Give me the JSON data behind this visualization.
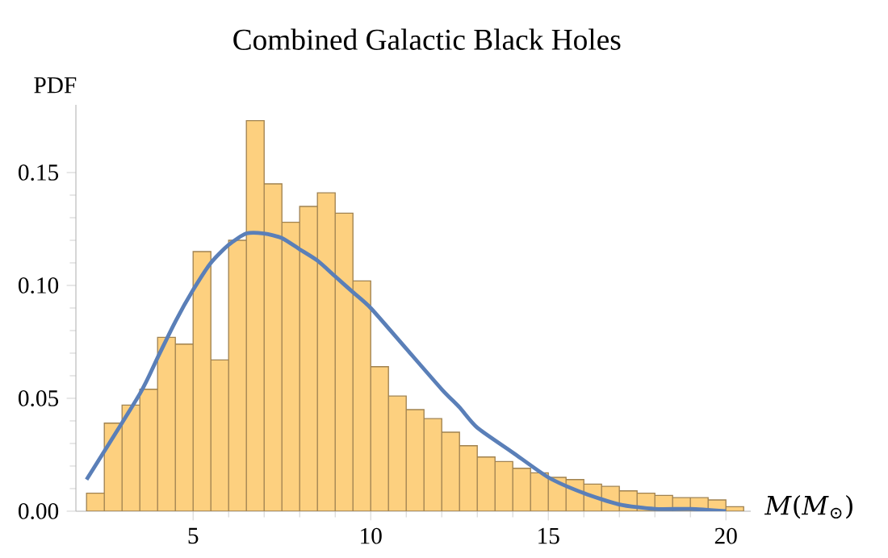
{
  "chart_data": {
    "type": "histogram",
    "title": "Combined Galactic Black Holes",
    "ylabel": "PDF",
    "xlabel": "*M*(*M*$_{⊙}$)",
    "bins": [
      2,
      2.5,
      3,
      3.5,
      4,
      4.5,
      5,
      5.5,
      6,
      6.5,
      7,
      7.5,
      8,
      8.5,
      9,
      9.5,
      10,
      10.5,
      11,
      11.5,
      12,
      12.5,
      13,
      13.5,
      14,
      14.5,
      15,
      15.5,
      16,
      16.5,
      17,
      17.5,
      18,
      18.5,
      19,
      19.5,
      20,
      20.5
    ],
    "values": [
      0.008,
      0.039,
      0.047,
      0.054,
      0.077,
      0.074,
      0.115,
      0.067,
      0.12,
      0.173,
      0.145,
      0.128,
      0.135,
      0.141,
      0.132,
      0.102,
      0.064,
      0.051,
      0.045,
      0.041,
      0.035,
      0.029,
      0.024,
      0.022,
      0.019,
      0.017,
      0.015,
      0.014,
      0.012,
      0.011,
      0.009,
      0.008,
      0.007,
      0.006,
      0.006,
      0.005,
      0.002
    ],
    "color": "#fdd07f",
    "series": [
      {
        "type": "line",
        "color": "#5a7fb8",
        "x": [
          2,
          3.5,
          4,
          4.5,
          5,
          5.5,
          6,
          6.5,
          7,
          7.5,
          8,
          8.5,
          9,
          9.5,
          10,
          11,
          12,
          12.5,
          13,
          14,
          15,
          16,
          17,
          18,
          19,
          20
        ],
        "values": [
          0.014,
          0.052,
          0.068,
          0.084,
          0.098,
          0.11,
          0.118,
          0.123,
          0.123,
          0.121,
          0.116,
          0.111,
          0.104,
          0.097,
          0.09,
          0.072,
          0.054,
          0.046,
          0.037,
          0.026,
          0.015,
          0.008,
          0.003,
          0.001,
          0.001,
          0.0
        ]
      }
    ],
    "xlim": [
      1.7,
      20.7
    ],
    "ylim": [
      0,
      0.18
    ],
    "xticks": [
      5,
      10,
      15,
      20
    ],
    "yticks": [
      {
        "value": 0,
        "label": "0.00"
      },
      {
        "value": 0.05,
        "label": "0.05"
      },
      {
        "value": 0.1,
        "label": "0.10"
      },
      {
        "value": 0.15,
        "label": "0.15"
      }
    ],
    "marker": "none"
  }
}
